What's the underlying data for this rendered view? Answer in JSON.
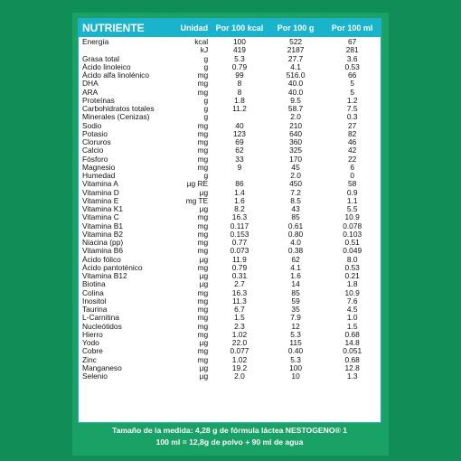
{
  "table": {
    "headers": [
      "NUTRIENTE",
      "Unidad",
      "Por 100 kcal",
      "Por 100 g",
      "Por 100 ml"
    ],
    "rows": [
      [
        "Energía",
        "kcal",
        "100",
        "522",
        "67"
      ],
      [
        "",
        "kJ",
        "419",
        "2187",
        "281"
      ],
      [
        "Grasa total",
        "g",
        "5.3",
        "27.7",
        "3.6"
      ],
      [
        "Ácido linoleico",
        "g",
        "0.79",
        "4.1",
        "0.53"
      ],
      [
        "Ácido alfa linolénico",
        "mg",
        "99",
        "516.0",
        "66"
      ],
      [
        "DHA",
        "mg",
        "8",
        "40.0",
        "5"
      ],
      [
        "ARA",
        "mg",
        "8",
        "40.0",
        "5"
      ],
      [
        "Proteínas",
        "g",
        "1.8",
        "9.5",
        "1.2"
      ],
      [
        "Carbohidratos totales",
        "g",
        "11.2",
        "58.7",
        "7.5"
      ],
      [
        "Minerales (Cenizas)",
        "g",
        "",
        "2.0",
        "0.3"
      ],
      [
        "Sodio",
        "mg",
        "40",
        "210",
        "27"
      ],
      [
        "Potasio",
        "mg",
        "123",
        "640",
        "82"
      ],
      [
        "Cloruros",
        "mg",
        "69",
        "360",
        "46"
      ],
      [
        "Calcio",
        "mg",
        "62",
        "325",
        "42"
      ],
      [
        "Fósforo",
        "mg",
        "33",
        "170",
        "22"
      ],
      [
        "Magnesio",
        "mg",
        "9",
        "45",
        "6"
      ],
      [
        "Humedad",
        "g",
        "",
        "2.0",
        "0"
      ],
      [
        "Vitamina A",
        "µg RE",
        "86",
        "450",
        "58"
      ],
      [
        "Vitamina D",
        "µg",
        "1.4",
        "7.2",
        "0.9"
      ],
      [
        "Vitamina E",
        "mg TE",
        "1.6",
        "8.5",
        "1.1"
      ],
      [
        "Vitamina K1",
        "µg",
        "8.2",
        "43",
        "5.5"
      ],
      [
        "Vitamina C",
        "mg",
        "16.3",
        "85",
        "10.9"
      ],
      [
        "Vitamina B1",
        "mg",
        "0.117",
        "0.61",
        "0.078"
      ],
      [
        "Vitamina B2",
        "mg",
        "0.153",
        "0.80",
        "0.103"
      ],
      [
        "Niacina (pp)",
        "mg",
        "0.77",
        "4.0",
        "0.51"
      ],
      [
        "Vitamina B6",
        "mg",
        "0.073",
        "0.38",
        "0.049"
      ],
      [
        "Ácido fólico",
        "µg",
        "11.9",
        "62",
        "8.0"
      ],
      [
        "Ácido pantoténico",
        "mg",
        "0.79",
        "4.1",
        "0.53"
      ],
      [
        "Vitamina B12",
        "µg",
        "0.31",
        "1.6",
        "0.21"
      ],
      [
        "Biotina",
        "µg",
        "2.7",
        "14",
        "1.8"
      ],
      [
        "Colina",
        "mg",
        "16.3",
        "85",
        "10.9"
      ],
      [
        "Inositol",
        "mg",
        "11.3",
        "59",
        "7.6"
      ],
      [
        "Taurina",
        "mg",
        "6.7",
        "35",
        "4.5"
      ],
      [
        "L-Carnitina",
        "mg",
        "1.5",
        "7.9",
        "1.0"
      ],
      [
        "Nucleótidos",
        "mg",
        "2.3",
        "12",
        "1.5"
      ],
      [
        "Hierro",
        "mg",
        "1.02",
        "5.3",
        "0.68"
      ],
      [
        "Yodo",
        "µg",
        "22.0",
        "115",
        "14.8"
      ],
      [
        "Cobre",
        "mg",
        "0.077",
        "0.40",
        "0.051"
      ],
      [
        "Zinc",
        "mg",
        "1.02",
        "5.3",
        "0.68"
      ],
      [
        "Manganeso",
        "µg",
        "19.2",
        "100",
        "12.8"
      ],
      [
        "Selenio",
        "µg",
        "2.0",
        "10",
        "1.3"
      ]
    ]
  },
  "footer": {
    "line1": "Tamaño de la medida: 4,28 g de fórmula láctea NESTOGENO® 1",
    "line2": "100 ml = 12,8g de polvo + 90 ml de agua"
  }
}
